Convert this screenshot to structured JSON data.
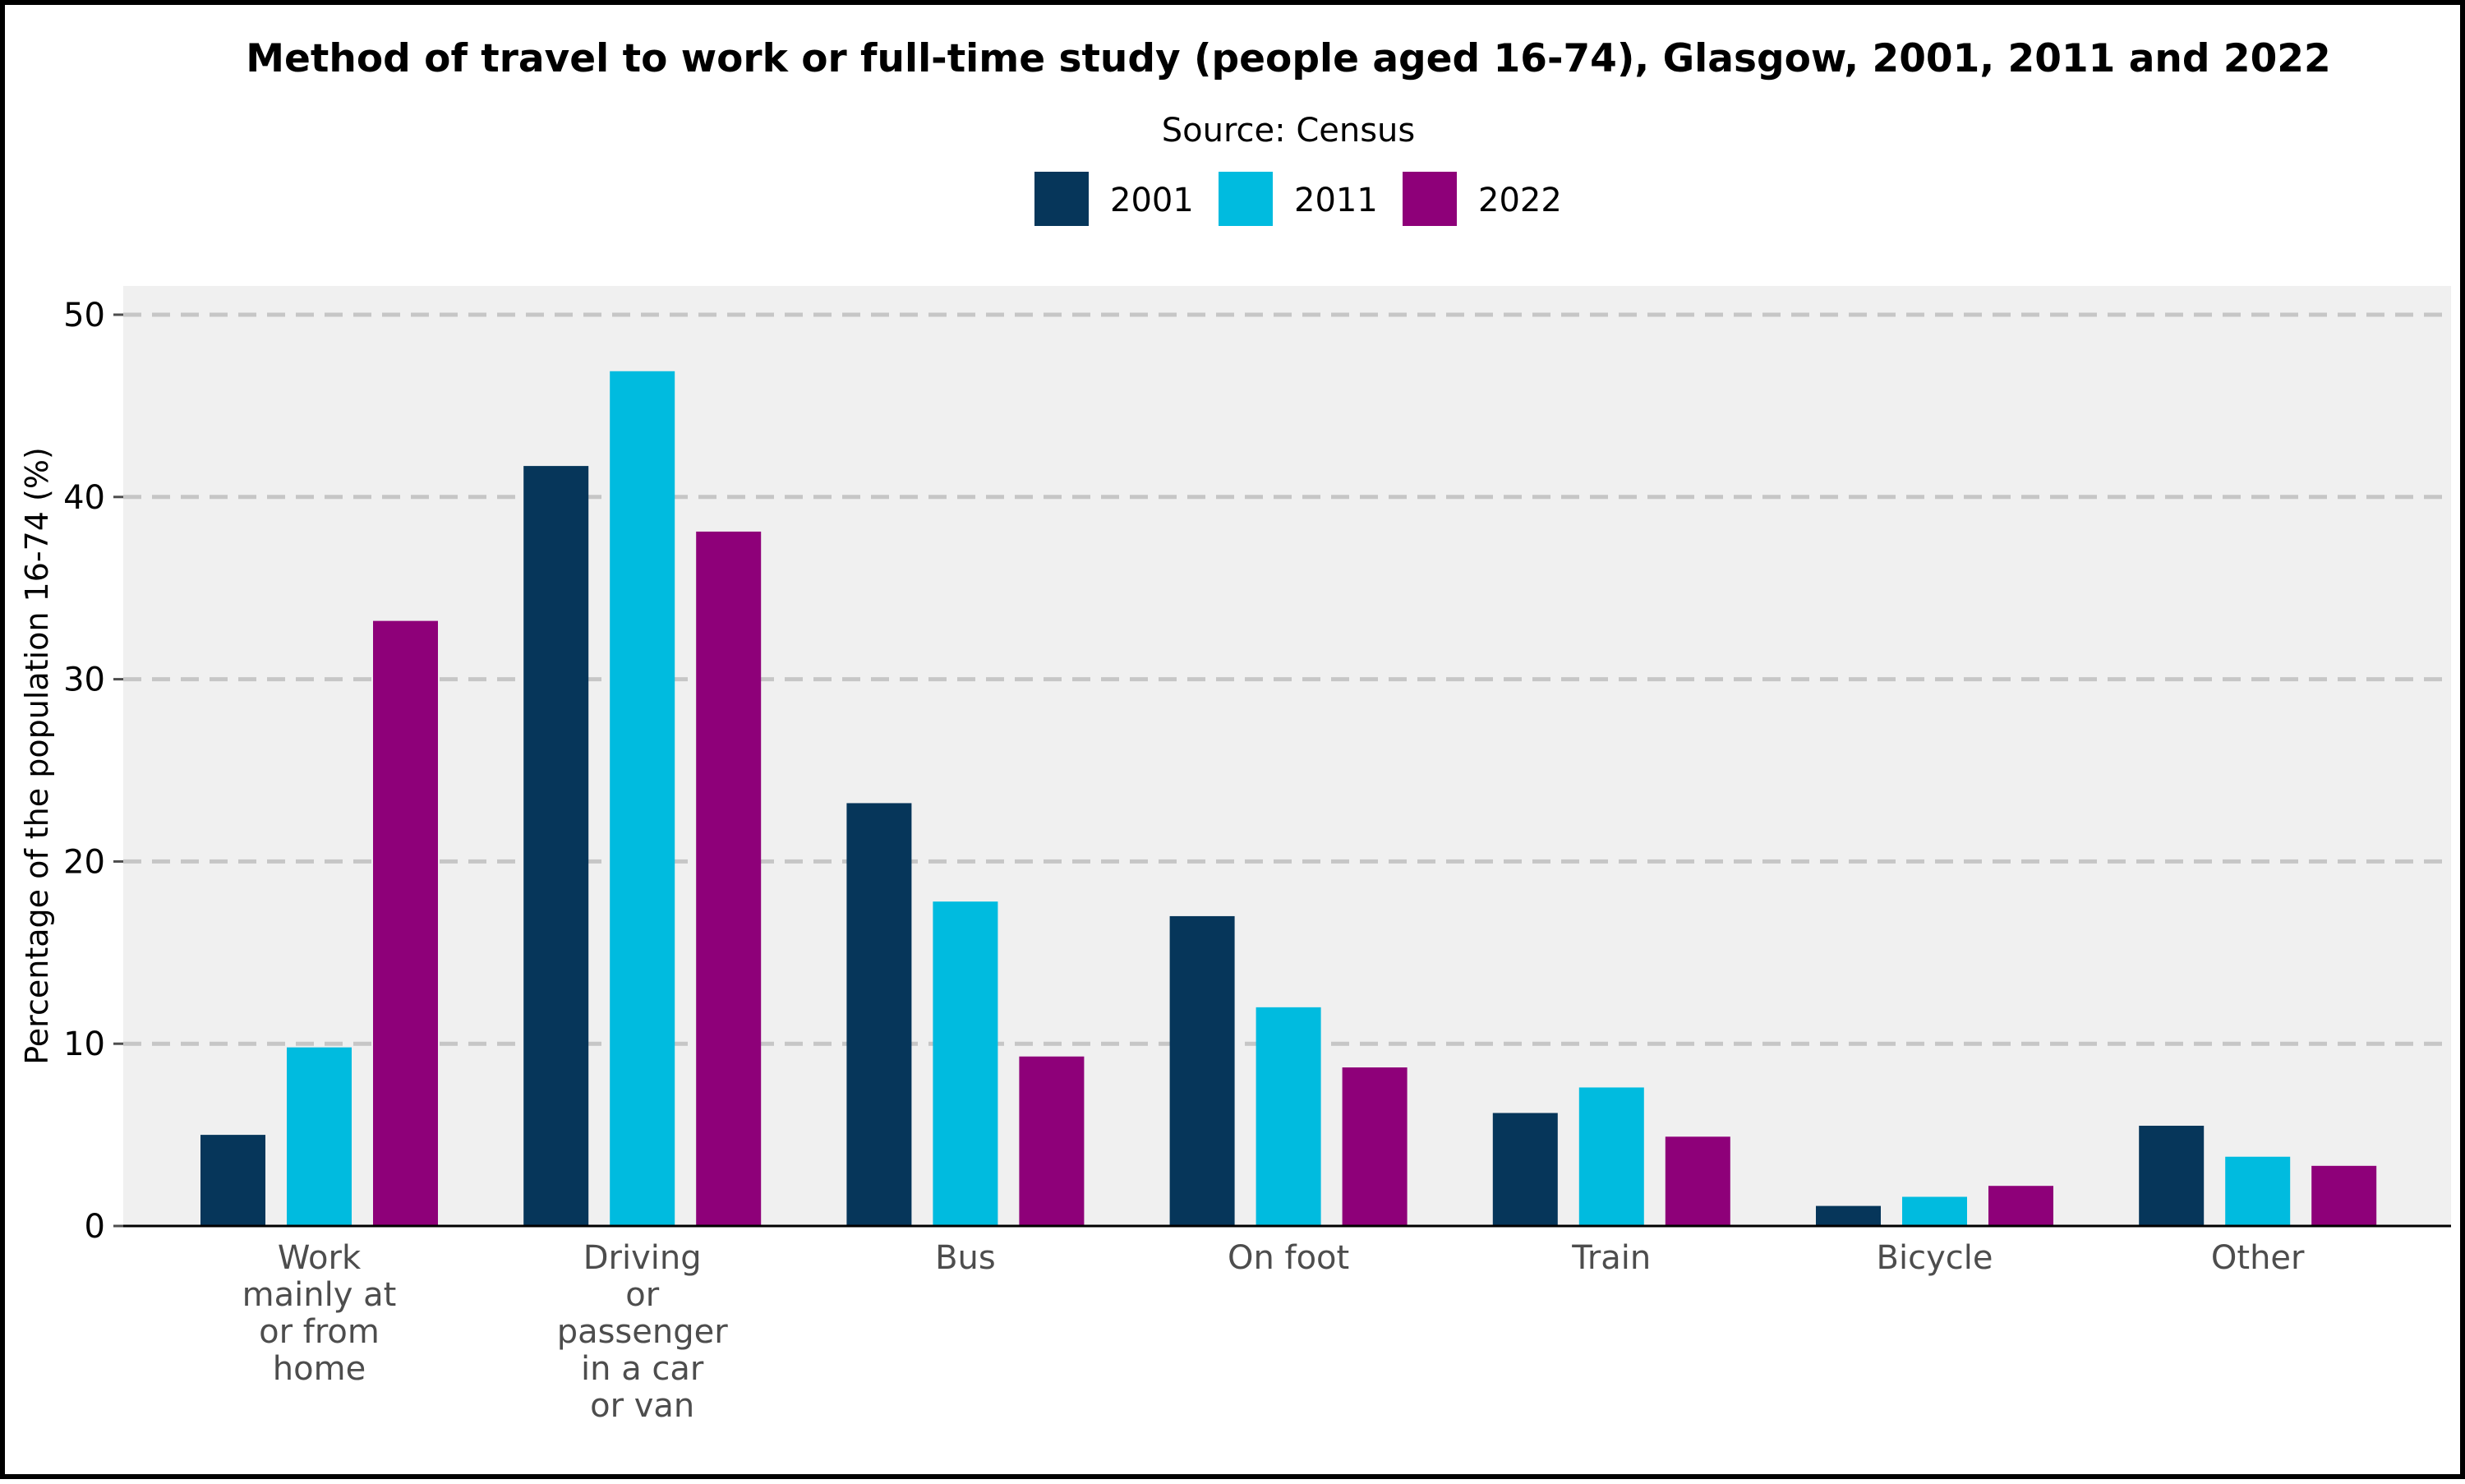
{
  "chart_data": {
    "type": "bar",
    "title": "Method of travel to work or full-time study (people aged 16-74), Glasgow, 2001, 2011 and 2022",
    "subtitle": "Source: Census",
    "xlabel": "",
    "ylabel": "Percentage of the population 16-74 (%)",
    "ylim": [
      0,
      50
    ],
    "yticks": [
      0,
      10,
      20,
      30,
      40,
      50
    ],
    "grid": "horizontal dashed",
    "legend_position": "top",
    "categories": [
      "Work mainly at or from home",
      "Driving or passenger in a car or van",
      "Bus",
      "On foot",
      "Train",
      "Bicycle",
      "Other"
    ],
    "category_label_lines": [
      [
        "Work",
        "mainly at",
        "or from",
        "home"
      ],
      [
        "Driving",
        "or",
        "passenger",
        "in a car",
        "or van"
      ],
      [
        "Bus"
      ],
      [
        "On foot"
      ],
      [
        "Train"
      ],
      [
        "Bicycle"
      ],
      [
        "Other"
      ]
    ],
    "series": [
      {
        "name": "2001",
        "color": "#06365a",
        "values": [
          5.0,
          41.7,
          23.2,
          17.0,
          6.2,
          1.1,
          5.5
        ]
      },
      {
        "name": "2011",
        "color": "#00bbdf",
        "values": [
          9.8,
          46.9,
          17.8,
          12.0,
          7.6,
          1.6,
          3.8
        ]
      },
      {
        "name": "2022",
        "color": "#8e0079",
        "values": [
          33.2,
          38.1,
          9.3,
          8.7,
          4.9,
          2.2,
          3.3
        ]
      }
    ]
  }
}
